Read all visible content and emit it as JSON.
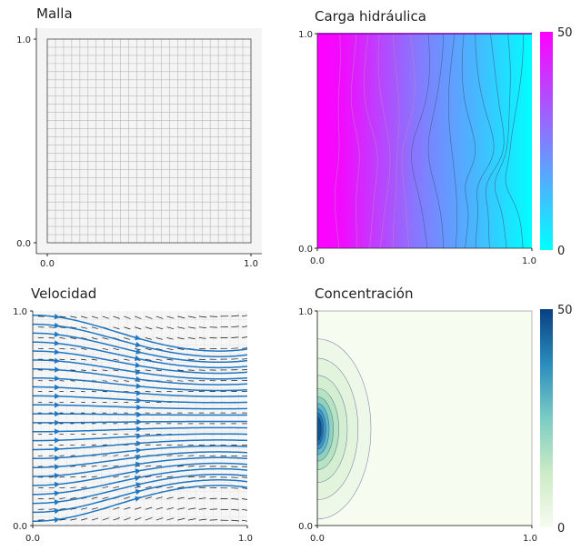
{
  "chart_data": [
    {
      "type": "heatmap",
      "title": "Malla",
      "xlabel": "",
      "ylabel": "",
      "xlim": [
        0.0,
        1.0
      ],
      "ylim": [
        0.0,
        1.0
      ],
      "xticks": [
        "0.0",
        "1.0"
      ],
      "yticks": [
        "0.0",
        "1.0"
      ],
      "grid_cells": [
        25,
        25
      ],
      "grid": true,
      "colors": {
        "panel_bg": "#f4f4f4",
        "grid_line": "#b8b8b8"
      }
    },
    {
      "type": "heatmap",
      "title": "Carga hidráulica",
      "xlabel": "",
      "ylabel": "",
      "xlim": [
        0.0,
        1.0
      ],
      "ylim": [
        0.0,
        1.0
      ],
      "xticks": [
        "0.0",
        "1.0"
      ],
      "yticks": [
        "0.0",
        "1.0"
      ],
      "colorbar": {
        "min": 0,
        "max": 50,
        "ticks": [
          "0",
          "50"
        ],
        "colormap": "cool",
        "colors": [
          "#00ffff",
          "#ff00ff"
        ]
      },
      "field": "Head decreases from 50 at x=0 to about 0 at x=1",
      "contour_levels": 14
    },
    {
      "type": "scatter",
      "title": "Velocidad",
      "xlabel": "",
      "ylabel": "",
      "xlim": [
        0.0,
        1.0
      ],
      "ylim": [
        0.0,
        1.0
      ],
      "xticks": [
        "0.0",
        "1.0"
      ],
      "yticks": [
        "0.0",
        "1.0"
      ],
      "colors": {
        "streamline": "#1f77c4",
        "quiver": "#111111",
        "panel_bg": "#f6f6f6"
      },
      "flow_direction": "left-to-right"
    },
    {
      "type": "heatmap",
      "title": "Concentración",
      "xlabel": "",
      "ylabel": "",
      "xlim": [
        0.0,
        1.0
      ],
      "ylim": [
        0.0,
        1.0
      ],
      "xticks": [
        "0.0",
        "1.0"
      ],
      "yticks": [
        "0.0",
        "1.0"
      ],
      "colorbar": {
        "min": 0,
        "max": 50,
        "ticks": [
          "0",
          "50"
        ],
        "colormap": "GnBu",
        "colors": [
          "#f7fcf0",
          "#ccebc5",
          "#7bccc4",
          "#2b8cbe",
          "#084081"
        ]
      },
      "plume": {
        "source_x": 0.0,
        "source_y": 0.45,
        "peak": 50
      }
    }
  ]
}
